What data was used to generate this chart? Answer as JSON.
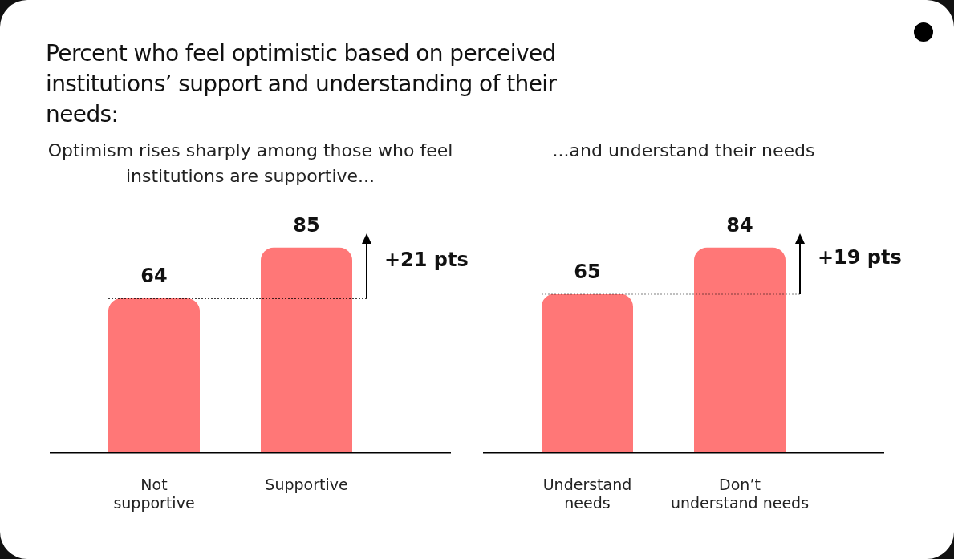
{
  "chart_data": [
    {
      "type": "bar",
      "title": "Percent who feel optimistic based on perceived institutions’ support and understanding of their needs:",
      "subtitle": "Optimism rises sharply among those who feel institutions are supportive...",
      "categories": [
        "Not supportive",
        "Supportive"
      ],
      "values": [
        64,
        85
      ],
      "color": "#ff7777",
      "data_labels": true,
      "annotations": [
        "+21 pts"
      ],
      "ref_lines": [
        {
          "axis": "y",
          "value": 64,
          "color": "#000000",
          "line_style": "dotted"
        }
      ]
    },
    {
      "type": "bar",
      "subtitle": "...and understand their needs",
      "categories": [
        "Understand needs",
        "Don’t understand needs"
      ],
      "values": [
        65,
        84
      ],
      "color": "#ff7777",
      "data_labels": true,
      "annotations": [
        "+19 pts"
      ],
      "ref_lines": [
        {
          "axis": "y",
          "value": 65,
          "color": "#000000",
          "line_style": "dotted"
        }
      ]
    }
  ]
}
